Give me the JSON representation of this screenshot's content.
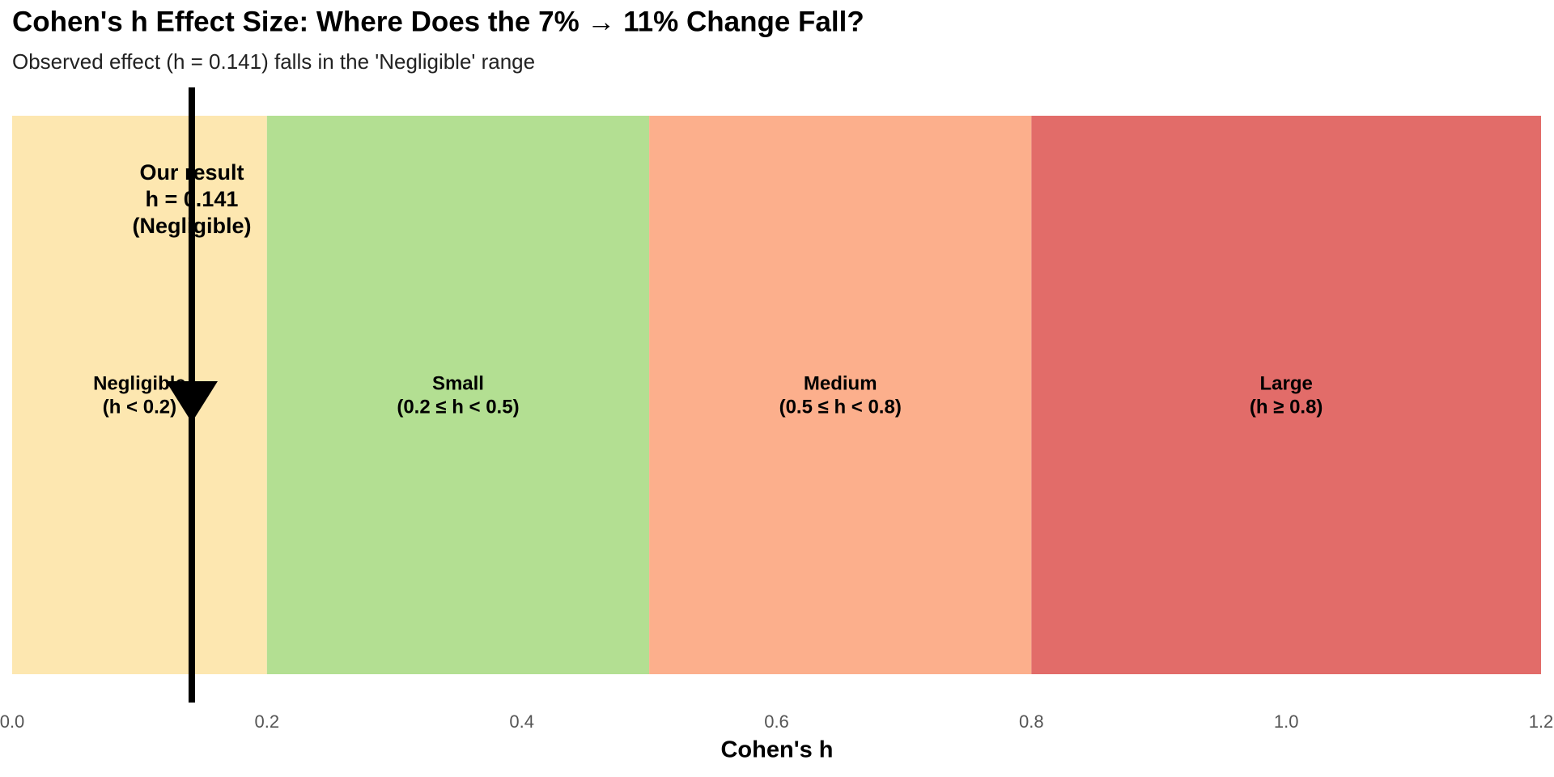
{
  "chart_data": {
    "type": "range",
    "title": "Cohen's h Effect Size: Where Does the 7% → 11% Change Fall?",
    "subtitle": "Observed effect (h = 0.141) falls in the 'Negligible' range",
    "x_label": "Cohen's h",
    "xlim": [
      0,
      1.2
    ],
    "xticks": [
      {
        "value": 0,
        "label": "0.0"
      },
      0.2,
      0.4,
      0.6,
      0.8,
      {
        "value": 1,
        "label": "1.0"
      },
      1.2
    ],
    "bands": [
      {
        "name": "Negligible",
        "range_label": "(h < 0.2)",
        "start": 0,
        "end": 0.2,
        "color": "#fde7b0"
      },
      {
        "name": "Small",
        "range_label": "(0.2 ≤ h < 0.5)",
        "start": 0.2,
        "end": 0.5,
        "color": "#b3df92"
      },
      {
        "name": "Medium",
        "range_label": "(0.5 ≤ h < 0.8)",
        "start": 0.5,
        "end": 0.8,
        "color": "#fcaf8c"
      },
      {
        "name": "Large",
        "range_label": "(h ≥ 0.8)",
        "start": 0.8,
        "end": 1.2,
        "color": "#e26c69"
      }
    ],
    "marker": {
      "value": 0.141,
      "color": "#000000",
      "annotation": [
        "Our result",
        "h = 0.141",
        "(Negligible)"
      ]
    }
  }
}
